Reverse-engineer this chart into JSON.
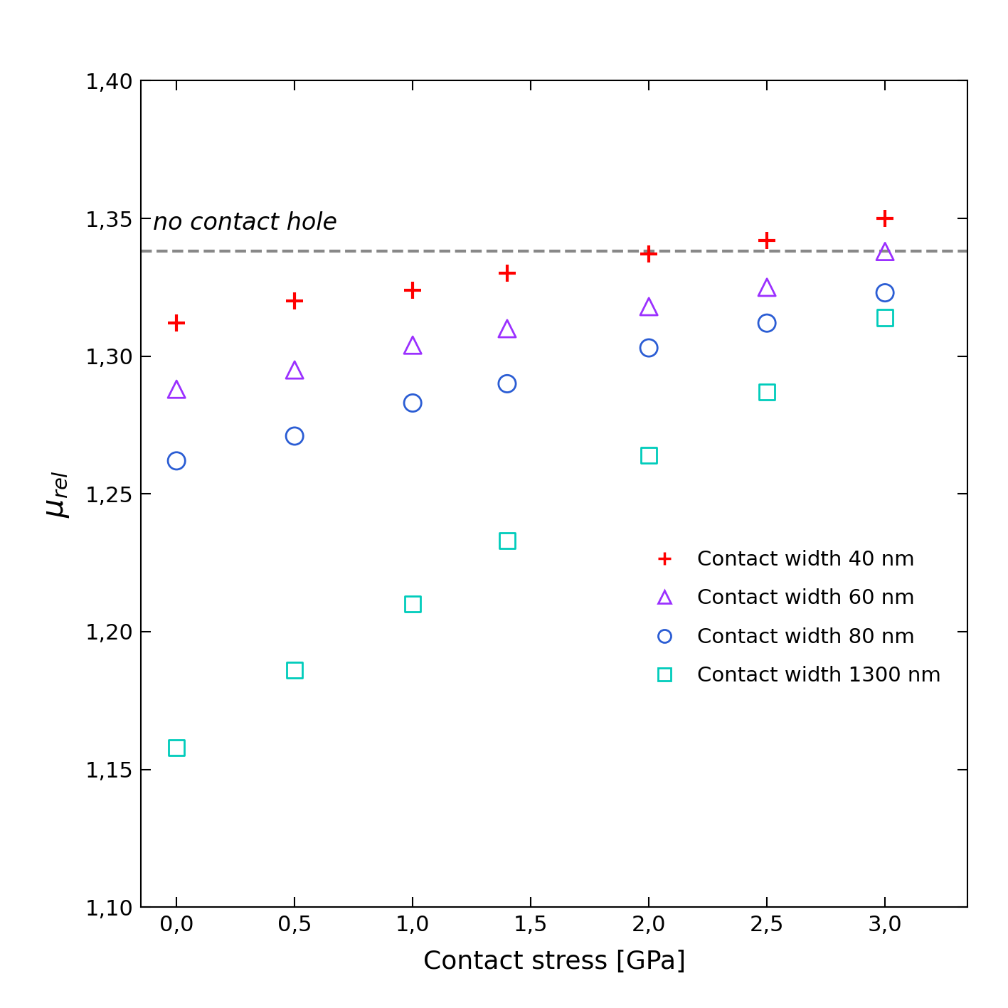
{
  "x_values": [
    0.0,
    0.5,
    1.0,
    1.4,
    2.0,
    2.5,
    3.0
  ],
  "series_order": [
    "40nm",
    "60nm",
    "80nm",
    "1300nm"
  ],
  "series": {
    "40nm": {
      "label": "Contact width 40 nm",
      "color": "#FF0000",
      "marker": "plus",
      "y": [
        1.312,
        1.32,
        1.324,
        1.33,
        1.337,
        1.342,
        1.35
      ]
    },
    "60nm": {
      "label": "Contact width 60 nm",
      "color": "#9B30FF",
      "marker": "triangle",
      "y": [
        1.288,
        1.295,
        1.304,
        1.31,
        1.318,
        1.325,
        1.338
      ]
    },
    "80nm": {
      "label": "Contact width 80 nm",
      "color": "#2B5DD4",
      "marker": "circle",
      "y": [
        1.262,
        1.271,
        1.283,
        1.29,
        1.303,
        1.312,
        1.323
      ]
    },
    "1300nm": {
      "label": "Contact width 1300 nm",
      "color": "#00CCBB",
      "marker": "square",
      "y": [
        1.158,
        1.186,
        1.21,
        1.233,
        1.264,
        1.287,
        1.314
      ]
    }
  },
  "dashed_line_y": 1.338,
  "dashed_line_label": "no contact hole",
  "dashed_line_color": "#888888",
  "xlabel": "Contact stress [GPa]",
  "ylim": [
    1.1,
    1.4
  ],
  "xlim": [
    -0.15,
    3.35
  ],
  "yticks": [
    1.1,
    1.15,
    1.2,
    1.25,
    1.3,
    1.35,
    1.4
  ],
  "xticks": [
    0.0,
    0.5,
    1.0,
    1.5,
    2.0,
    2.5,
    3.0
  ],
  "xtick_labels": [
    "0,0",
    "0,5",
    "1,0",
    "1,5",
    "2,0",
    "2,5",
    "3,0"
  ],
  "ytick_labels": [
    "1,10",
    "1,15",
    "1,20",
    "1,25",
    "1,30",
    "1,35",
    "1,40"
  ],
  "marker_size": 13,
  "tick_font_size": 22,
  "label_font_size": 26,
  "legend_font_size": 21,
  "annotation_font_size": 24
}
